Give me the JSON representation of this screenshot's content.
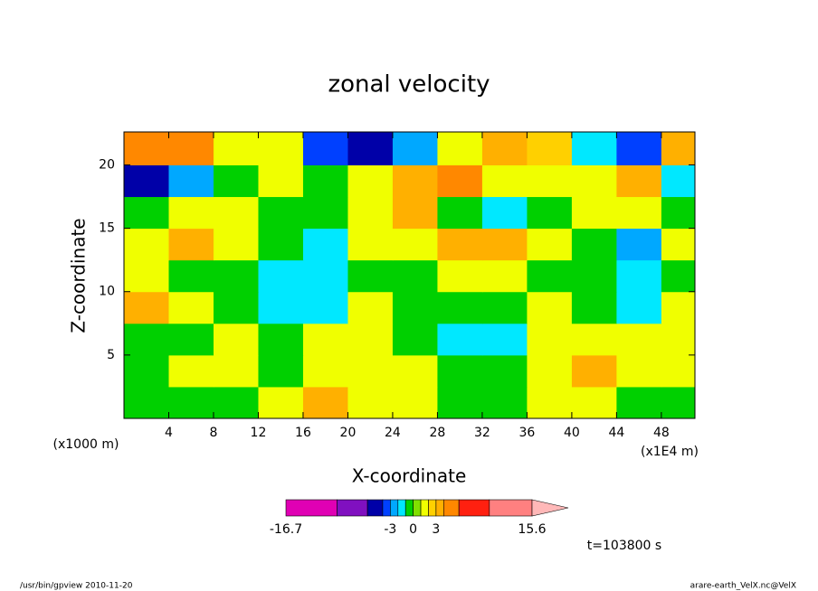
{
  "chart_data": {
    "type": "contour",
    "title": "zonal velocity",
    "x_label": "X-coordinate",
    "y_label": "Z-coordinate",
    "x_unit": "(x1E4 m)",
    "y_unit": "(x1000 m)",
    "annotation": "t=103800 s",
    "footer_left": "/usr/bin/gpview  2010-11-20",
    "footer_right": "arare-earth_VelX.nc@VelX",
    "xlim": [
      0,
      51
    ],
    "ylim": [
      0,
      22.6
    ],
    "xticks": [
      4,
      8,
      12,
      16,
      20,
      24,
      28,
      32,
      36,
      40,
      44,
      48
    ],
    "yticks": [
      5,
      10,
      15,
      20
    ],
    "x": [
      0,
      4,
      8,
      12,
      16,
      20,
      24,
      28,
      32,
      36,
      40,
      44,
      48,
      51
    ],
    "y": [
      0,
      2.5,
      5,
      7.5,
      10,
      12.5,
      15,
      17.5,
      20,
      22.6
    ],
    "z": [
      [
        -0.5,
        -0.5,
        -0.5,
        1.5,
        3,
        1.5,
        1.5,
        -0.5,
        -0.5,
        1.5,
        1.5,
        -0.5,
        -0.5
      ],
      [
        -0.5,
        1.5,
        1.5,
        -0.5,
        1.5,
        1.5,
        1.5,
        -0.5,
        -0.5,
        1.5,
        3.5,
        1.5,
        1.5
      ],
      [
        -0.5,
        -0.5,
        1.5,
        -0.5,
        1.5,
        1.5,
        -0.5,
        -1.5,
        -1.5,
        1.5,
        1.5,
        1.5,
        1.5
      ],
      [
        3,
        1.5,
        -0.5,
        -1.5,
        -1.5,
        1.5,
        -0.5,
        -0.5,
        -0.5,
        1.5,
        -0.5,
        -1.5,
        1.5
      ],
      [
        1.5,
        -0.5,
        -0.5,
        -1.5,
        -1.5,
        -0.5,
        -0.5,
        1.5,
        1.5,
        -0.5,
        -0.5,
        -1.5,
        -0.5
      ],
      [
        1.5,
        3,
        1.5,
        -0.5,
        -1.5,
        1.5,
        1.5,
        3.5,
        3.5,
        1.5,
        -0.5,
        -3,
        1.5
      ],
      [
        -0.5,
        1.5,
        1.5,
        -0.5,
        -0.5,
        1.5,
        3.5,
        -0.5,
        -1.5,
        -0.5,
        1.5,
        1.5,
        -0.5
      ],
      [
        -5,
        -3,
        -0.5,
        1.5,
        -0.5,
        1.5,
        3.5,
        4.5,
        1.5,
        1.5,
        1.5,
        3.5,
        -1.5
      ],
      [
        5,
        5,
        1.5,
        1.5,
        -3.5,
        -5,
        -3,
        1.5,
        3.5,
        2.5,
        -1.5,
        -4,
        3.5
      ]
    ],
    "levels": [
      -16.7,
      -10,
      -6,
      -4,
      -3,
      -2,
      -1,
      0,
      1,
      2,
      3,
      4,
      6,
      10,
      15.6
    ],
    "colors": [
      "#e000b4",
      "#8010c0",
      "#0000a8",
      "#0040ff",
      "#00a8ff",
      "#00e8ff",
      "#00d000",
      "#80e000",
      "#f0ff00",
      "#ffd000",
      "#ffb000",
      "#ff8800",
      "#ff2010",
      "#ff8080"
    ],
    "level_ticks": [
      -16.7,
      -3,
      0,
      3,
      15.6
    ]
  }
}
